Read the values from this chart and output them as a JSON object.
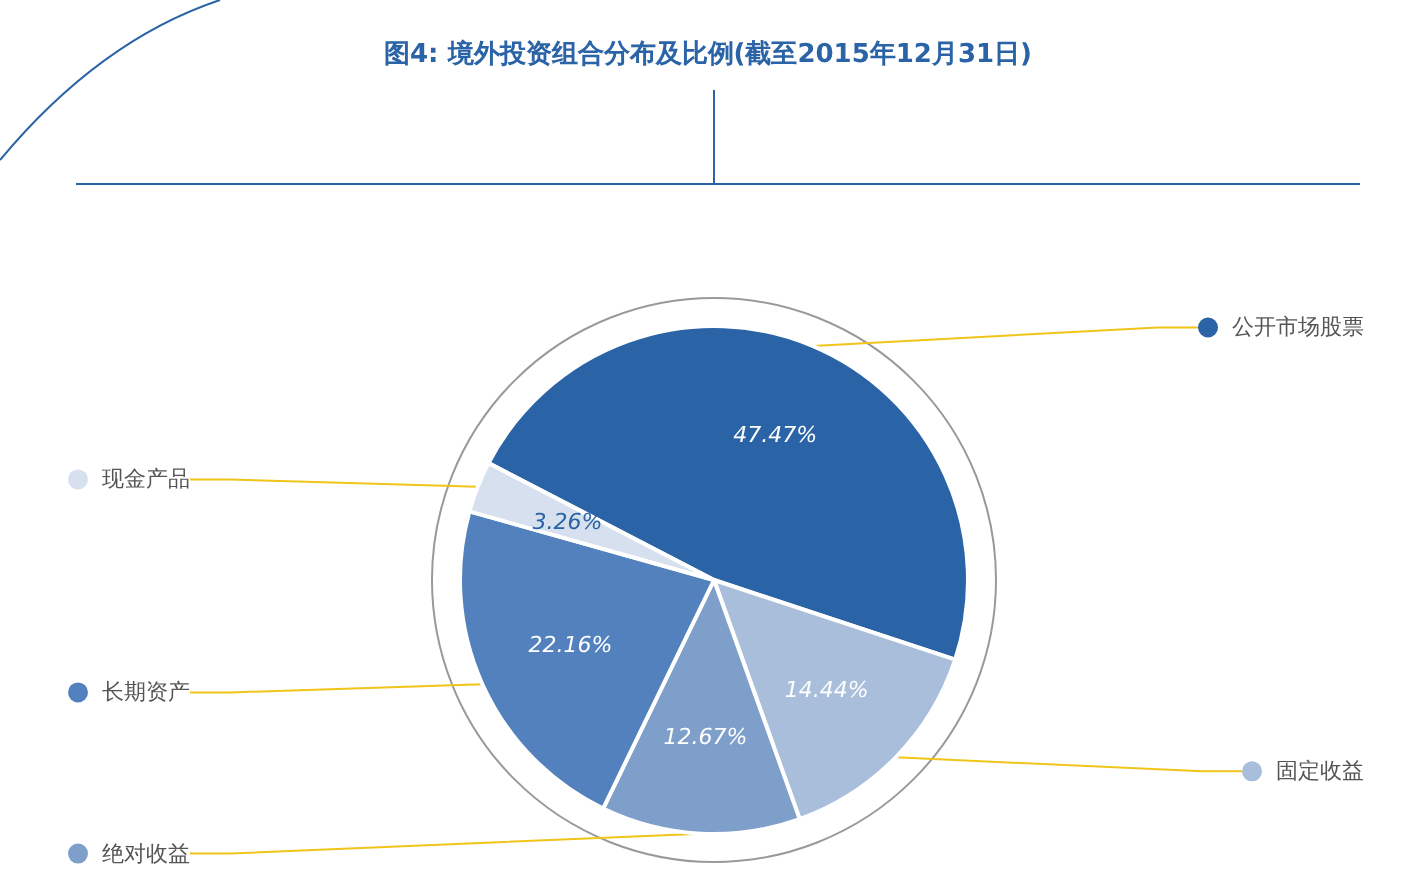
{
  "chart_data": {
    "type": "pie",
    "title": "图4: 境外投资组合分布及比例(截至2015年12月31日)",
    "categories": [
      "公开市场股票",
      "固定收益",
      "绝对收益",
      "长期资产",
      "现金产品"
    ],
    "values": [
      47.47,
      14.44,
      12.67,
      22.16,
      3.26
    ],
    "colors": [
      "#2a63a6",
      "#a9bedb",
      "#7f9fcb",
      "#5281bd",
      "#d6e0ee"
    ],
    "legend": "right",
    "value_labels": [
      "47.47%",
      "14.44%",
      "12.67%",
      "22.16%",
      "3.26%"
    ]
  }
}
